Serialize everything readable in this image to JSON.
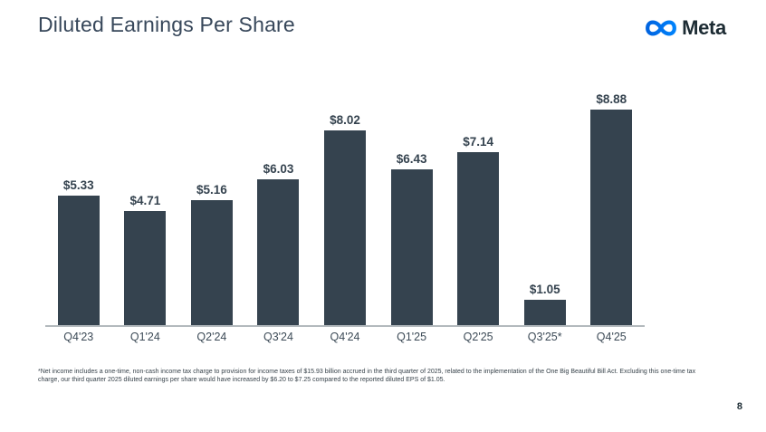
{
  "slide": {
    "title": "Diluted Earnings Per Share",
    "brand": {
      "wordmark": "Meta",
      "infinity_icon": "meta-infinity-icon",
      "logo_color_start": "#0064E0",
      "logo_color_end": "#0082FB",
      "wordmark_color": "#1C2B33"
    },
    "page_number": "8",
    "footnote_lines": [
      "*Net income includes a one-time, non-cash income tax charge to provision for income taxes of $15.93 billion accrued in the third quarter of 2025, related to the implementation of the One Big Beautiful Bill Act. Excluding this one-time tax",
      "charge, our third quarter 2025 diluted earnings per share would have increased by $6.20 to $7.25 compared to the reported diluted EPS of $1.05."
    ]
  },
  "chart_data": {
    "type": "bar",
    "title": "Diluted Earnings Per Share",
    "categories": [
      "Q4'23",
      "Q1'24",
      "Q2'24",
      "Q3'24",
      "Q4'24",
      "Q1'25",
      "Q2'25",
      "Q3'25*",
      "Q4'25"
    ],
    "values": [
      5.33,
      4.71,
      5.16,
      6.03,
      8.02,
      6.43,
      7.14,
      1.05,
      8.88
    ],
    "value_labels": [
      "$5.33",
      "$4.71",
      "$5.16",
      "$6.03",
      "$8.02",
      "$6.43",
      "$7.14",
      "$1.05",
      "$8.88"
    ],
    "xlabel": "",
    "ylabel": "",
    "ylim": [
      0,
      9
    ],
    "grid": false,
    "legend": "none",
    "bar_color": "#35434F",
    "value_label_color": "#35434F",
    "axis_line_color": "#B3B9BD"
  }
}
